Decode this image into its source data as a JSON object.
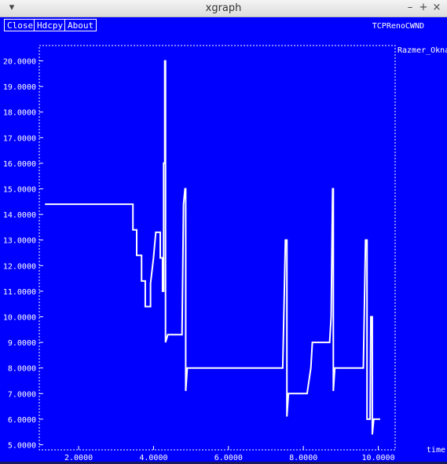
{
  "window": {
    "title": "xgraph",
    "menu_glyph": "▾",
    "min_glyph": "–",
    "max_glyph": "+",
    "close_glyph": "×"
  },
  "toolbar": {
    "close_label": "Close",
    "hdcpy_label": "Hdcpy",
    "about_label": "About"
  },
  "graph": {
    "name": "TCPRenoCWND"
  },
  "colors": {
    "background": "#0000ff",
    "foreground": "#ffffff"
  },
  "chart_data": {
    "type": "line",
    "title": "TCPRenoCWND",
    "xlabel": "time",
    "ylabel": "",
    "xlim": [
      0.95,
      10.45
    ],
    "ylim": [
      4.8,
      20.6
    ],
    "grid": false,
    "legend": "top-right",
    "x_ticks": [
      {
        "value": 2,
        "label": "2.0000"
      },
      {
        "value": 4,
        "label": "4.0000"
      },
      {
        "value": 6,
        "label": "6.0000"
      },
      {
        "value": 8,
        "label": "8.0000"
      },
      {
        "value": 10,
        "label": "10.0000"
      }
    ],
    "y_ticks": [
      {
        "value": 5,
        "label": "5.0000"
      },
      {
        "value": 6,
        "label": "6.0000"
      },
      {
        "value": 7,
        "label": "7.0000"
      },
      {
        "value": 8,
        "label": "8.0000"
      },
      {
        "value": 9,
        "label": "9.0000"
      },
      {
        "value": 10,
        "label": "10.0000"
      },
      {
        "value": 11,
        "label": "11.0000"
      },
      {
        "value": 12,
        "label": "12.0000"
      },
      {
        "value": 13,
        "label": "13.0000"
      },
      {
        "value": 14,
        "label": "14.0000"
      },
      {
        "value": 15,
        "label": "15.0000"
      },
      {
        "value": 16,
        "label": "16.0000"
      },
      {
        "value": 17,
        "label": "17.0000"
      },
      {
        "value": 18,
        "label": "18.0000"
      },
      {
        "value": 19,
        "label": "19.0000"
      },
      {
        "value": 20,
        "label": "20.0000"
      }
    ],
    "series": [
      {
        "name": "Razmer_Okna",
        "color": "#ffffff",
        "points": [
          [
            1.1,
            14.4
          ],
          [
            3.45,
            14.4
          ],
          [
            3.45,
            13.4
          ],
          [
            3.55,
            13.4
          ],
          [
            3.55,
            12.4
          ],
          [
            3.68,
            12.4
          ],
          [
            3.68,
            11.4
          ],
          [
            3.78,
            11.4
          ],
          [
            3.78,
            10.4
          ],
          [
            3.92,
            10.4
          ],
          [
            3.92,
            11.3
          ],
          [
            4.0,
            12.3
          ],
          [
            4.06,
            13.3
          ],
          [
            4.18,
            13.3
          ],
          [
            4.18,
            12.3
          ],
          [
            4.24,
            12.3
          ],
          [
            4.24,
            11.0
          ],
          [
            4.27,
            11.0
          ],
          [
            4.27,
            16.0
          ],
          [
            4.3,
            16.0
          ],
          [
            4.3,
            20.0
          ],
          [
            4.32,
            20.0
          ],
          [
            4.32,
            9.0
          ],
          [
            4.38,
            9.3
          ],
          [
            4.76,
            9.3
          ],
          [
            4.8,
            14.4
          ],
          [
            4.84,
            15.0
          ],
          [
            4.86,
            15.0
          ],
          [
            4.86,
            7.1
          ],
          [
            4.9,
            8.0
          ],
          [
            7.45,
            8.0
          ],
          [
            7.52,
            13.0
          ],
          [
            7.56,
            13.0
          ],
          [
            7.56,
            6.1
          ],
          [
            7.6,
            7.0
          ],
          [
            8.1,
            7.0
          ],
          [
            8.2,
            8.0
          ],
          [
            8.24,
            9.0
          ],
          [
            8.7,
            9.0
          ],
          [
            8.74,
            10.0
          ],
          [
            8.78,
            15.0
          ],
          [
            8.8,
            15.0
          ],
          [
            8.8,
            7.1
          ],
          [
            8.84,
            8.0
          ],
          [
            9.6,
            8.0
          ],
          [
            9.66,
            13.0
          ],
          [
            9.7,
            13.0
          ],
          [
            9.7,
            6.0
          ],
          [
            9.78,
            6.0
          ],
          [
            9.8,
            10.0
          ],
          [
            9.84,
            10.0
          ],
          [
            9.84,
            5.4
          ],
          [
            9.88,
            6.0
          ],
          [
            10.05,
            6.0
          ]
        ]
      }
    ]
  }
}
